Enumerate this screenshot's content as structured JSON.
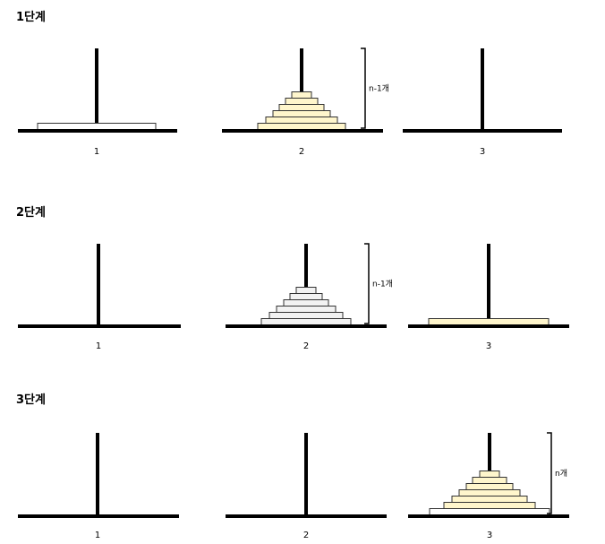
{
  "steps": [
    {
      "title": "1단계",
      "towers": [
        {
          "label": "1",
          "disks": [
            {
              "w": 132,
              "fill": "#ffffff"
            }
          ]
        },
        {
          "label": "2",
          "disks": [
            {
              "w": 98,
              "fill": "#fff6cc"
            },
            {
              "w": 80,
              "fill": "#fff6cc"
            },
            {
              "w": 64,
              "fill": "#fff6cc"
            },
            {
              "w": 50,
              "fill": "#fff6cc"
            },
            {
              "w": 36,
              "fill": "#fff6cc"
            },
            {
              "w": 22,
              "fill": "#fff6cc"
            }
          ]
        },
        {
          "label": "3",
          "disks": []
        }
      ],
      "bracket_tower": 2,
      "bracket_label": "n-1개"
    },
    {
      "title": "2단계",
      "towers": [
        {
          "label": "1",
          "disks": []
        },
        {
          "label": "2",
          "disks": [
            {
              "w": 100,
              "fill": "#f2f2f2"
            },
            {
              "w": 82,
              "fill": "#f2f2f2"
            },
            {
              "w": 66,
              "fill": "#f2f2f2"
            },
            {
              "w": 50,
              "fill": "#f2f2f2"
            },
            {
              "w": 36,
              "fill": "#f2f2f2"
            },
            {
              "w": 22,
              "fill": "#f2f2f2"
            }
          ]
        },
        {
          "label": "3",
          "disks": [
            {
              "w": 134,
              "fill": "#fff6cc"
            }
          ]
        }
      ],
      "bracket_tower": 2,
      "bracket_label": "n-1개"
    },
    {
      "title": "3단계",
      "towers": [
        {
          "label": "1",
          "disks": []
        },
        {
          "label": "2",
          "disks": []
        },
        {
          "label": "3",
          "disks": [
            {
              "w": 134,
              "fill": "#ffffff"
            },
            {
              "w": 102,
              "fill": "#fff6cc"
            },
            {
              "w": 84,
              "fill": "#fff6cc"
            },
            {
              "w": 68,
              "fill": "#fff6cc"
            },
            {
              "w": 52,
              "fill": "#fff6cc"
            },
            {
              "w": 38,
              "fill": "#fff6cc"
            },
            {
              "w": 22,
              "fill": "#fff6cc"
            }
          ]
        }
      ],
      "bracket_tower": 3,
      "bracket_label": "n개"
    }
  ],
  "colors": {
    "line": "#000000",
    "disk_stroke": "#333333"
  }
}
